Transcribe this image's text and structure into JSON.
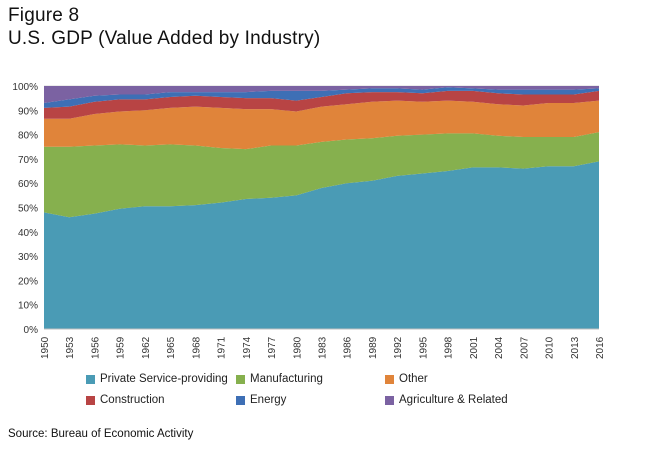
{
  "figure": {
    "label": "Figure 8",
    "title": "U.S. GDP (Value Added by Industry)",
    "source": "Source: Bureau of Economic Activity"
  },
  "chart_data": {
    "type": "area",
    "stacked": true,
    "title": "U.S. GDP (Value Added by Industry)",
    "xlabel": "",
    "ylabel": "",
    "ylim": [
      0,
      100
    ],
    "yticks": [
      "0%",
      "10%",
      "20%",
      "30%",
      "40%",
      "50%",
      "60%",
      "70%",
      "80%",
      "90%",
      "100%"
    ],
    "x_tick_labels": [
      "1950",
      "1953",
      "1956",
      "1959",
      "1962",
      "1965",
      "1968",
      "1971",
      "1974",
      "1977",
      "1980",
      "1983",
      "1986",
      "1989",
      "1992",
      "1995",
      "1998",
      "2001",
      "2004",
      "2007",
      "2010",
      "2013",
      "2016"
    ],
    "grid": true,
    "legend_position": "bottom",
    "x": [
      1950,
      1953,
      1956,
      1959,
      1962,
      1965,
      1968,
      1971,
      1974,
      1977,
      1980,
      1983,
      1986,
      1989,
      1992,
      1995,
      1998,
      2001,
      2004,
      2007,
      2010,
      2013,
      2016
    ],
    "series": [
      {
        "name": "Private Service-providing",
        "color": "#4a9bb5",
        "values": [
          48,
          46,
          47.5,
          49.5,
          50.5,
          50.5,
          51,
          52,
          53.5,
          54,
          55,
          58,
          60,
          61,
          63,
          64,
          65,
          66.5,
          66.5,
          66,
          67,
          67,
          69
        ]
      },
      {
        "name": "Manufacturing",
        "color": "#86b04e",
        "values": [
          27,
          29,
          28,
          26.5,
          25,
          25.5,
          24.5,
          22.5,
          20.5,
          21.5,
          20.5,
          19,
          18,
          17.5,
          16.5,
          16,
          15.5,
          14,
          13,
          13,
          12,
          12,
          12
        ]
      },
      {
        "name": "Other",
        "color": "#e0843a",
        "values": [
          11.5,
          11.5,
          13,
          13.5,
          14.5,
          15,
          16,
          16.5,
          16.5,
          15,
          14,
          14.5,
          14.5,
          15,
          14.5,
          13.5,
          13.5,
          13,
          13,
          13,
          14,
          14,
          13
        ]
      },
      {
        "name": "Construction",
        "color": "#b84444",
        "values": [
          4.5,
          5,
          5,
          5,
          4.5,
          4.5,
          4.5,
          4.5,
          4.5,
          4.5,
          4.5,
          4,
          4.5,
          4,
          3.5,
          3.5,
          4,
          4.5,
          4.5,
          4.5,
          3.5,
          3.5,
          4
        ]
      },
      {
        "name": "Energy",
        "color": "#3e6fb5",
        "values": [
          2,
          3,
          2.5,
          2,
          2,
          2,
          1.5,
          2,
          2.5,
          3,
          4,
          2.5,
          1.5,
          1.5,
          1.5,
          1.5,
          1.5,
          1,
          1.5,
          2,
          2,
          2,
          1
        ]
      },
      {
        "name": "Agriculture & Related",
        "color": "#7b62a2",
        "values": [
          7,
          5.5,
          4,
          3.5,
          3.5,
          2.5,
          2.5,
          2.5,
          2.5,
          2,
          2,
          2,
          1.5,
          1,
          1,
          1.5,
          0.5,
          1,
          1.5,
          1.5,
          1.5,
          1.5,
          1
        ]
      }
    ]
  }
}
